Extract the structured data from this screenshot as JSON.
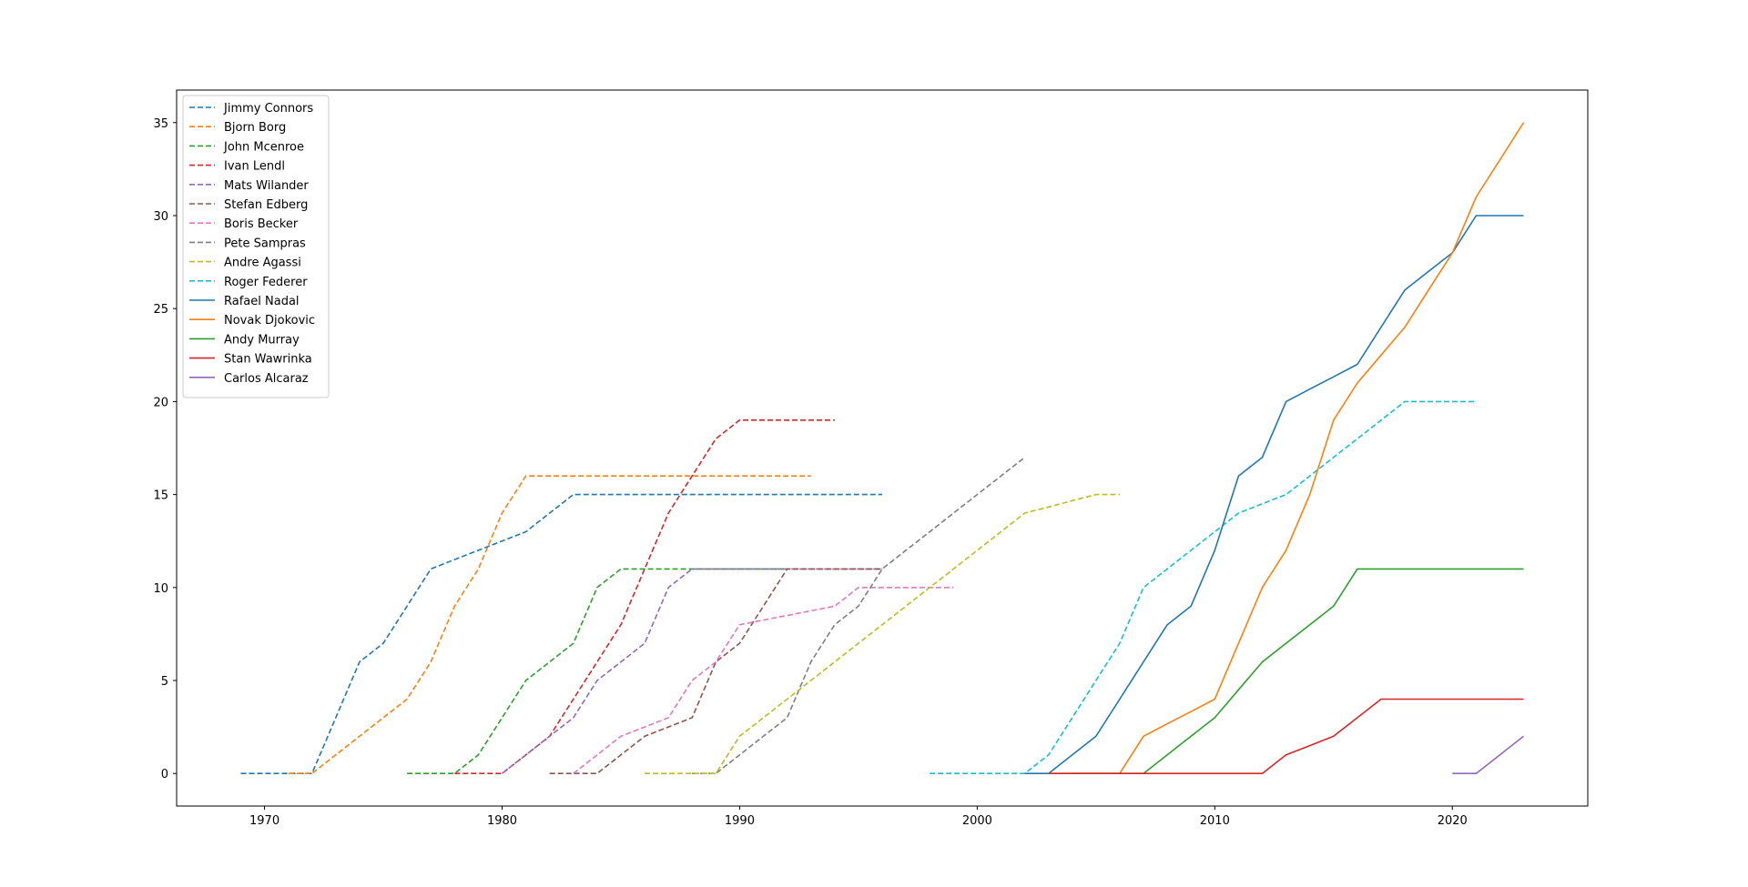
{
  "chart_data": {
    "type": "line",
    "title": "",
    "xlabel": "",
    "ylabel": "",
    "xlim": [
      1966.3,
      2025.7
    ],
    "ylim": [
      -1.75,
      36.75
    ],
    "xticks": [
      1970,
      1980,
      1990,
      2000,
      2010,
      2020
    ],
    "yticks": [
      0,
      5,
      10,
      15,
      20,
      25,
      30,
      35
    ],
    "grid": false,
    "legend_position": "top-left",
    "series": [
      {
        "name": "Jimmy Connors",
        "color": "#1f77b4",
        "dashed": true,
        "x": [
          1969,
          1970,
          1971,
          1972,
          1973,
          1974,
          1975,
          1976,
          1977,
          1978,
          1979,
          1980,
          1981,
          1982,
          1983,
          1984,
          1985,
          1986,
          1987,
          1988,
          1989,
          1990,
          1991,
          1992,
          1993,
          1994,
          1995,
          1996
        ],
        "y": [
          0,
          0,
          0,
          0,
          3,
          6,
          7,
          9,
          11,
          11.5,
          12,
          12.5,
          13,
          14,
          15,
          15,
          15,
          15,
          15,
          15,
          15,
          15,
          15,
          15,
          15,
          15,
          15,
          15
        ]
      },
      {
        "name": "Bjorn Borg",
        "color": "#ff7f0e",
        "dashed": true,
        "x": [
          1971,
          1972,
          1973,
          1974,
          1975,
          1976,
          1977,
          1978,
          1979,
          1980,
          1981,
          1982,
          1983,
          1984,
          1985,
          1986,
          1987,
          1988,
          1989,
          1990,
          1991,
          1992,
          1993
        ],
        "y": [
          0,
          0,
          1,
          2,
          3,
          4,
          6,
          9,
          11,
          14,
          16,
          16,
          16,
          16,
          16,
          16,
          16,
          16,
          16,
          16,
          16,
          16,
          16
        ]
      },
      {
        "name": "John Mcenroe",
        "color": "#2ca02c",
        "dashed": true,
        "x": [
          1976,
          1977,
          1978,
          1979,
          1980,
          1981,
          1982,
          1983,
          1984,
          1985,
          1986,
          1987,
          1988,
          1989,
          1990,
          1991,
          1992
        ],
        "y": [
          0,
          0,
          0,
          1,
          3,
          5,
          6,
          7,
          10,
          11,
          11,
          11,
          11,
          11,
          11,
          11,
          11
        ]
      },
      {
        "name": "Ivan Lendl",
        "color": "#d62728",
        "dashed": true,
        "x": [
          1978,
          1979,
          1980,
          1981,
          1982,
          1983,
          1984,
          1985,
          1986,
          1987,
          1988,
          1989,
          1990,
          1991,
          1992,
          1993,
          1994
        ],
        "y": [
          0,
          0,
          0,
          1,
          2,
          4,
          6,
          8,
          11,
          14,
          16,
          18,
          19,
          19,
          19,
          19,
          19
        ]
      },
      {
        "name": "Mats Wilander",
        "color": "#9467bd",
        "dashed": true,
        "x": [
          1980,
          1981,
          1982,
          1983,
          1984,
          1985,
          1986,
          1987,
          1988,
          1989,
          1990,
          1991,
          1992,
          1993,
          1994,
          1995,
          1996
        ],
        "y": [
          0,
          1,
          2,
          3,
          5,
          6,
          7,
          10,
          11,
          11,
          11,
          11,
          11,
          11,
          11,
          11,
          11
        ]
      },
      {
        "name": "Stefan Edberg",
        "color": "#8c564b",
        "dashed": true,
        "x": [
          1982,
          1983,
          1984,
          1985,
          1986,
          1987,
          1988,
          1989,
          1990,
          1991,
          1992,
          1993,
          1994,
          1995,
          1996
        ],
        "y": [
          0,
          0,
          0,
          1,
          2,
          2.5,
          3,
          6,
          7,
          9,
          11,
          11,
          11,
          11,
          11
        ]
      },
      {
        "name": "Boris Becker",
        "color": "#e377c2",
        "dashed": true,
        "x": [
          1983,
          1984,
          1985,
          1986,
          1987,
          1988,
          1989,
          1990,
          1991,
          1992,
          1993,
          1994,
          1995,
          1996,
          1997,
          1998,
          1999
        ],
        "y": [
          0,
          1,
          2,
          2.5,
          3,
          5,
          6,
          8,
          8.25,
          8.5,
          8.75,
          9,
          10,
          10,
          10,
          10,
          10
        ]
      },
      {
        "name": "Pete Sampras",
        "color": "#7f7f7f",
        "dashed": true,
        "x": [
          1988,
          1989,
          1990,
          1991,
          1992,
          1993,
          1994,
          1995,
          1996,
          1997,
          1998,
          1999,
          2000,
          2001,
          2002
        ],
        "y": [
          0,
          0,
          1,
          2,
          3,
          6,
          8,
          9,
          11,
          12,
          13,
          14,
          15,
          16,
          17
        ]
      },
      {
        "name": "Andre Agassi",
        "color": "#bcbd22",
        "dashed": true,
        "x": [
          1986,
          1987,
          1988,
          1989,
          1990,
          1991,
          1992,
          1993,
          1994,
          1995,
          1996,
          1997,
          1998,
          1999,
          2000,
          2001,
          2002,
          2003,
          2004,
          2005,
          2006
        ],
        "y": [
          0,
          0,
          0,
          0,
          2,
          3,
          4,
          5,
          6,
          7,
          8,
          9,
          10,
          11,
          12,
          13,
          14,
          14.33,
          14.67,
          15,
          15
        ]
      },
      {
        "name": "Roger Federer",
        "color": "#17becf",
        "dashed": true,
        "x": [
          1998,
          1999,
          2000,
          2001,
          2002,
          2003,
          2004,
          2005,
          2006,
          2007,
          2008,
          2009,
          2010,
          2011,
          2012,
          2013,
          2014,
          2015,
          2016,
          2017,
          2018,
          2019,
          2020,
          2021
        ],
        "y": [
          0,
          0,
          0,
          0,
          0,
          1,
          3,
          5,
          7,
          10,
          11,
          12,
          13,
          14,
          14.5,
          15,
          16,
          17,
          18,
          19,
          20,
          20,
          20,
          20
        ]
      },
      {
        "name": "Rafael Nadal",
        "color": "#1f77b4",
        "dashed": false,
        "x": [
          2002,
          2003,
          2004,
          2005,
          2006,
          2007,
          2008,
          2009,
          2010,
          2011,
          2012,
          2013,
          2014,
          2015,
          2016,
          2017,
          2018,
          2019,
          2020,
          2021,
          2022,
          2023
        ],
        "y": [
          0,
          0,
          1,
          2,
          4,
          6,
          8,
          9,
          12,
          16,
          17,
          20,
          20.67,
          21.33,
          22,
          24,
          26,
          27,
          28,
          30,
          30,
          30
        ]
      },
      {
        "name": "Novak Djokovic",
        "color": "#ff7f0e",
        "dashed": false,
        "x": [
          2003,
          2004,
          2005,
          2006,
          2007,
          2008,
          2009,
          2010,
          2011,
          2012,
          2013,
          2014,
          2015,
          2016,
          2017,
          2018,
          2019,
          2020,
          2021,
          2022,
          2023
        ],
        "y": [
          0,
          0,
          0,
          0,
          2,
          2.67,
          3.33,
          4,
          7,
          10,
          12,
          15,
          19,
          21,
          22.5,
          24,
          26,
          28,
          31,
          33,
          35
        ]
      },
      {
        "name": "Andy Murray",
        "color": "#2ca02c",
        "dashed": false,
        "x": [
          2004,
          2005,
          2006,
          2007,
          2008,
          2009,
          2010,
          2011,
          2012,
          2013,
          2014,
          2015,
          2016,
          2017,
          2018,
          2019,
          2020,
          2021,
          2022,
          2023
        ],
        "y": [
          0,
          0,
          0,
          0,
          1,
          2,
          3,
          4.5,
          6,
          7,
          8,
          9,
          11,
          11,
          11,
          11,
          11,
          11,
          11,
          11
        ]
      },
      {
        "name": "Stan Wawrinka",
        "color": "#d62728",
        "dashed": false,
        "x": [
          2003,
          2004,
          2005,
          2006,
          2007,
          2008,
          2009,
          2010,
          2011,
          2012,
          2013,
          2014,
          2015,
          2016,
          2017,
          2018,
          2019,
          2020,
          2021,
          2022,
          2023
        ],
        "y": [
          0,
          0,
          0,
          0,
          0,
          0,
          0,
          0,
          0,
          0,
          1,
          1.5,
          2,
          3,
          4,
          4,
          4,
          4,
          4,
          4,
          4
        ]
      },
      {
        "name": "Carlos Alcaraz",
        "color": "#9467bd",
        "dashed": false,
        "x": [
          2020,
          2021,
          2022,
          2023
        ],
        "y": [
          0,
          0,
          1,
          2
        ]
      }
    ]
  }
}
